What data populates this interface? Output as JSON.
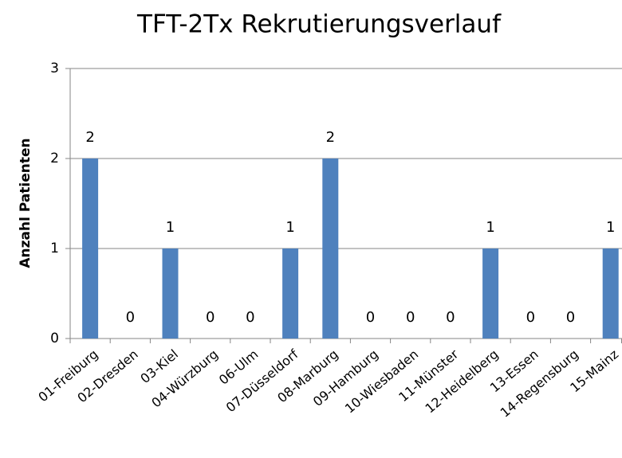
{
  "chart_data": {
    "type": "bar",
    "title": "TFT-2Tx Rekrutierungsverlauf",
    "y_label": "Anzahl Patienten",
    "categories": [
      "01-Freiburg",
      "02-Dresden",
      "03-Kiel",
      "04-Würzburg",
      "06-Ulm",
      "07-Düsseldorf",
      "08-Marburg",
      "09-Hamburg",
      "10-Wiesbaden",
      "11-Münster",
      "12-Heidelberg",
      "13-Essen",
      "14-Regensburg",
      "15-Mainz"
    ],
    "values": [
      2,
      0,
      1,
      0,
      0,
      1,
      2,
      0,
      0,
      0,
      1,
      0,
      0,
      1
    ],
    "color": "#4f81bd",
    "ylim": [
      0,
      3
    ],
    "yticks": [
      0,
      1,
      2,
      3
    ],
    "grid": true,
    "data_labels": true
  }
}
